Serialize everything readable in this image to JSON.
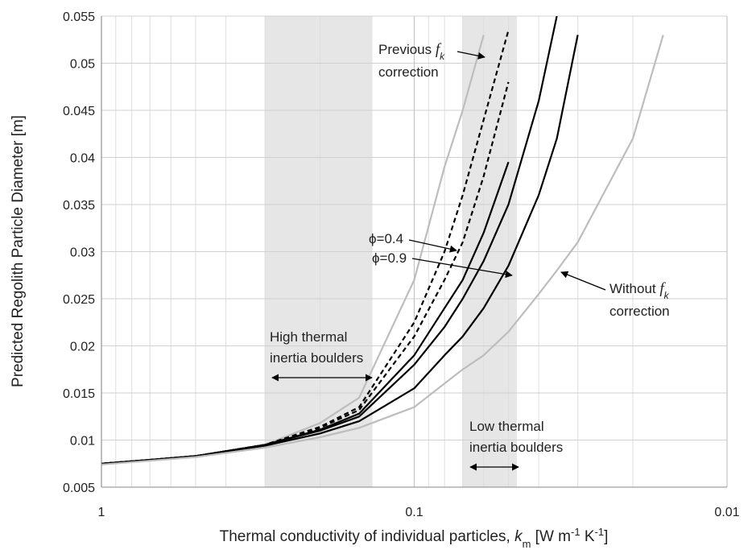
{
  "chart_data": {
    "type": "line",
    "y_label": "Predicted Regolith Particle Diameter [m]",
    "x_label": {
      "text": "Thermal conductivity of individual particles, ",
      "symbol": "k",
      "symbol_sub": "m",
      "units1": " [W m",
      "exp1": "-1",
      "units2": " K",
      "exp2": "-1",
      "units3": "]"
    },
    "x": [
      1,
      0.7,
      0.5,
      0.3,
      0.2,
      0.15,
      0.1,
      0.08,
      0.07,
      0.06,
      0.05,
      0.04,
      0.035,
      0.03,
      0.02,
      0.016
    ],
    "series": [
      {
        "color": "#bdbdbd",
        "dash": false,
        "values": [
          0.0075,
          0.0079,
          0.0083,
          0.0095,
          0.0118,
          0.0145,
          0.027,
          0.039,
          0.045,
          0.053,
          null,
          null,
          null,
          null,
          null,
          null
        ]
      },
      {
        "color": "#000000",
        "dash": true,
        "values": [
          0.0075,
          0.0079,
          0.0083,
          0.0095,
          0.0114,
          0.0135,
          0.0225,
          0.03,
          0.036,
          0.044,
          0.0535,
          null,
          null,
          null,
          null,
          null
        ]
      },
      {
        "color": "#000000",
        "dash": true,
        "values": [
          0.0075,
          0.0079,
          0.0083,
          0.0095,
          0.0113,
          0.0132,
          0.021,
          0.027,
          0.031,
          0.038,
          0.048,
          null,
          null,
          null,
          null,
          null
        ]
      },
      {
        "color": "#000000",
        "dash": false,
        "values": [
          0.0075,
          0.0079,
          0.0083,
          0.0095,
          0.0111,
          0.0128,
          0.019,
          0.024,
          0.027,
          0.032,
          0.0395,
          null,
          null,
          null,
          null,
          null
        ]
      },
      {
        "color": "#000000",
        "dash": false,
        "values": [
          0.0075,
          0.0079,
          0.0083,
          0.0095,
          0.011,
          0.0125,
          0.018,
          0.022,
          0.025,
          0.029,
          0.035,
          0.046,
          0.055,
          null,
          null,
          null
        ]
      },
      {
        "color": "#000000",
        "dash": false,
        "values": [
          0.0075,
          0.0079,
          0.0083,
          0.0094,
          0.0107,
          0.012,
          0.0155,
          0.019,
          0.021,
          0.024,
          0.0285,
          0.036,
          0.042,
          0.053,
          null,
          null
        ]
      },
      {
        "color": "#bdbdbd",
        "dash": false,
        "values": [
          0.0074,
          0.0078,
          0.0082,
          0.0092,
          0.0103,
          0.0113,
          0.0135,
          0.016,
          0.0175,
          0.019,
          0.0215,
          0.0255,
          0.028,
          0.031,
          0.042,
          0.053
        ]
      }
    ],
    "log_x": true,
    "x_reversed": true,
    "xlim": [
      1,
      0.01
    ],
    "xticks": [
      1,
      0.1,
      0.01
    ],
    "xgrid_minor": [
      0.9,
      0.8,
      0.7,
      0.6,
      0.5,
      0.4,
      0.3,
      0.2,
      0.09,
      0.08,
      0.07,
      0.06,
      0.05,
      0.04,
      0.03,
      0.02
    ],
    "ylim": [
      0.005,
      0.055
    ],
    "yticks": [
      0.005,
      0.01,
      0.015,
      0.02,
      0.025,
      0.03,
      0.035,
      0.04,
      0.045,
      0.05,
      0.055
    ],
    "grid": true,
    "bands": [
      [
        0.3,
        0.136
      ],
      [
        0.07,
        0.047
      ]
    ],
    "band_color": "#e6e6e6",
    "annotations": {
      "previous": {
        "text": "Previous ",
        "symbol": "f",
        "sub": "k",
        "line2": "correction"
      },
      "phi04": "ϕ=0.4",
      "phi09": "ϕ=0.9",
      "without": {
        "text": "Without ",
        "symbol": "f",
        "sub": "k",
        "line2": "correction"
      },
      "high": {
        "line1": "High thermal",
        "line2": "inertia boulders"
      },
      "low": {
        "line1": "Low thermal",
        "line2": "inertia boulders"
      }
    }
  }
}
